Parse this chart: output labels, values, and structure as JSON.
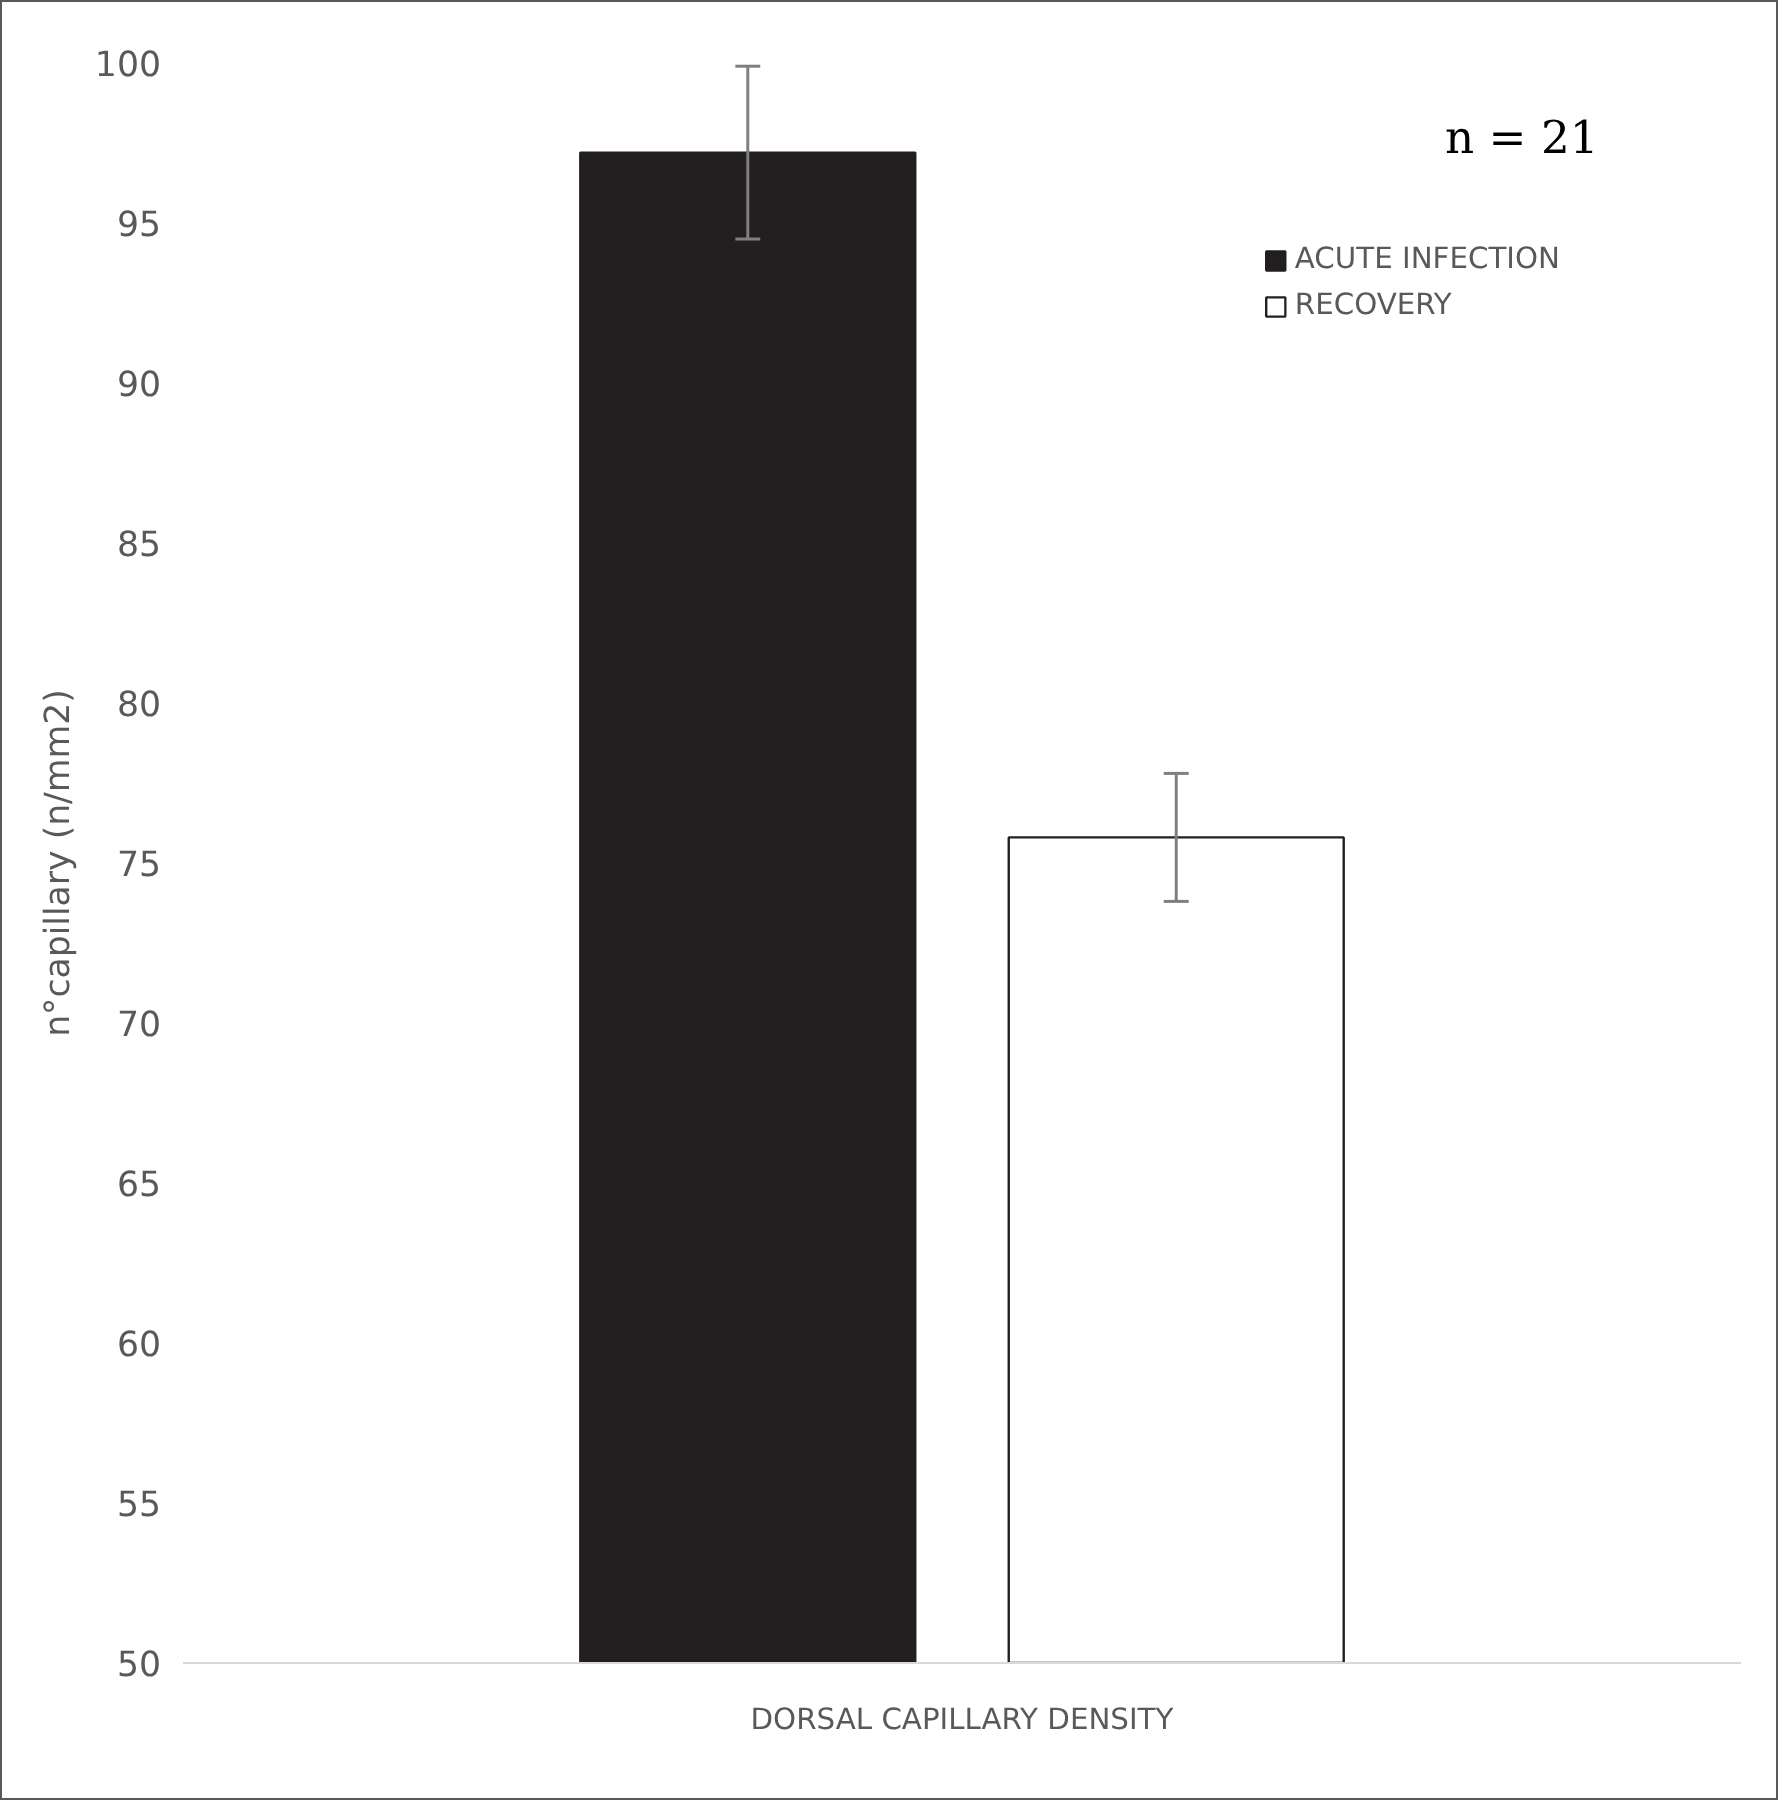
{
  "chart_data": {
    "type": "bar",
    "ylabel": "n°capillary (n/mm2)",
    "categories": [
      "DORSAL CAPILLARY DENSITY"
    ],
    "series": [
      {
        "name": "ACUTE INFECTION",
        "color": "#231f20",
        "values": [
          97.2
        ],
        "errors": [
          2.7
        ]
      },
      {
        "name": "RECOVERY",
        "color": "#ffffff",
        "values": [
          75.8
        ],
        "errors": [
          2.0
        ]
      }
    ],
    "ylim": [
      50,
      100
    ],
    "yticks": [
      50,
      55,
      60,
      65,
      70,
      75,
      80,
      85,
      90,
      95,
      100
    ],
    "grid": false,
    "legend": "top right",
    "annotations": [
      "n = 21"
    ]
  }
}
